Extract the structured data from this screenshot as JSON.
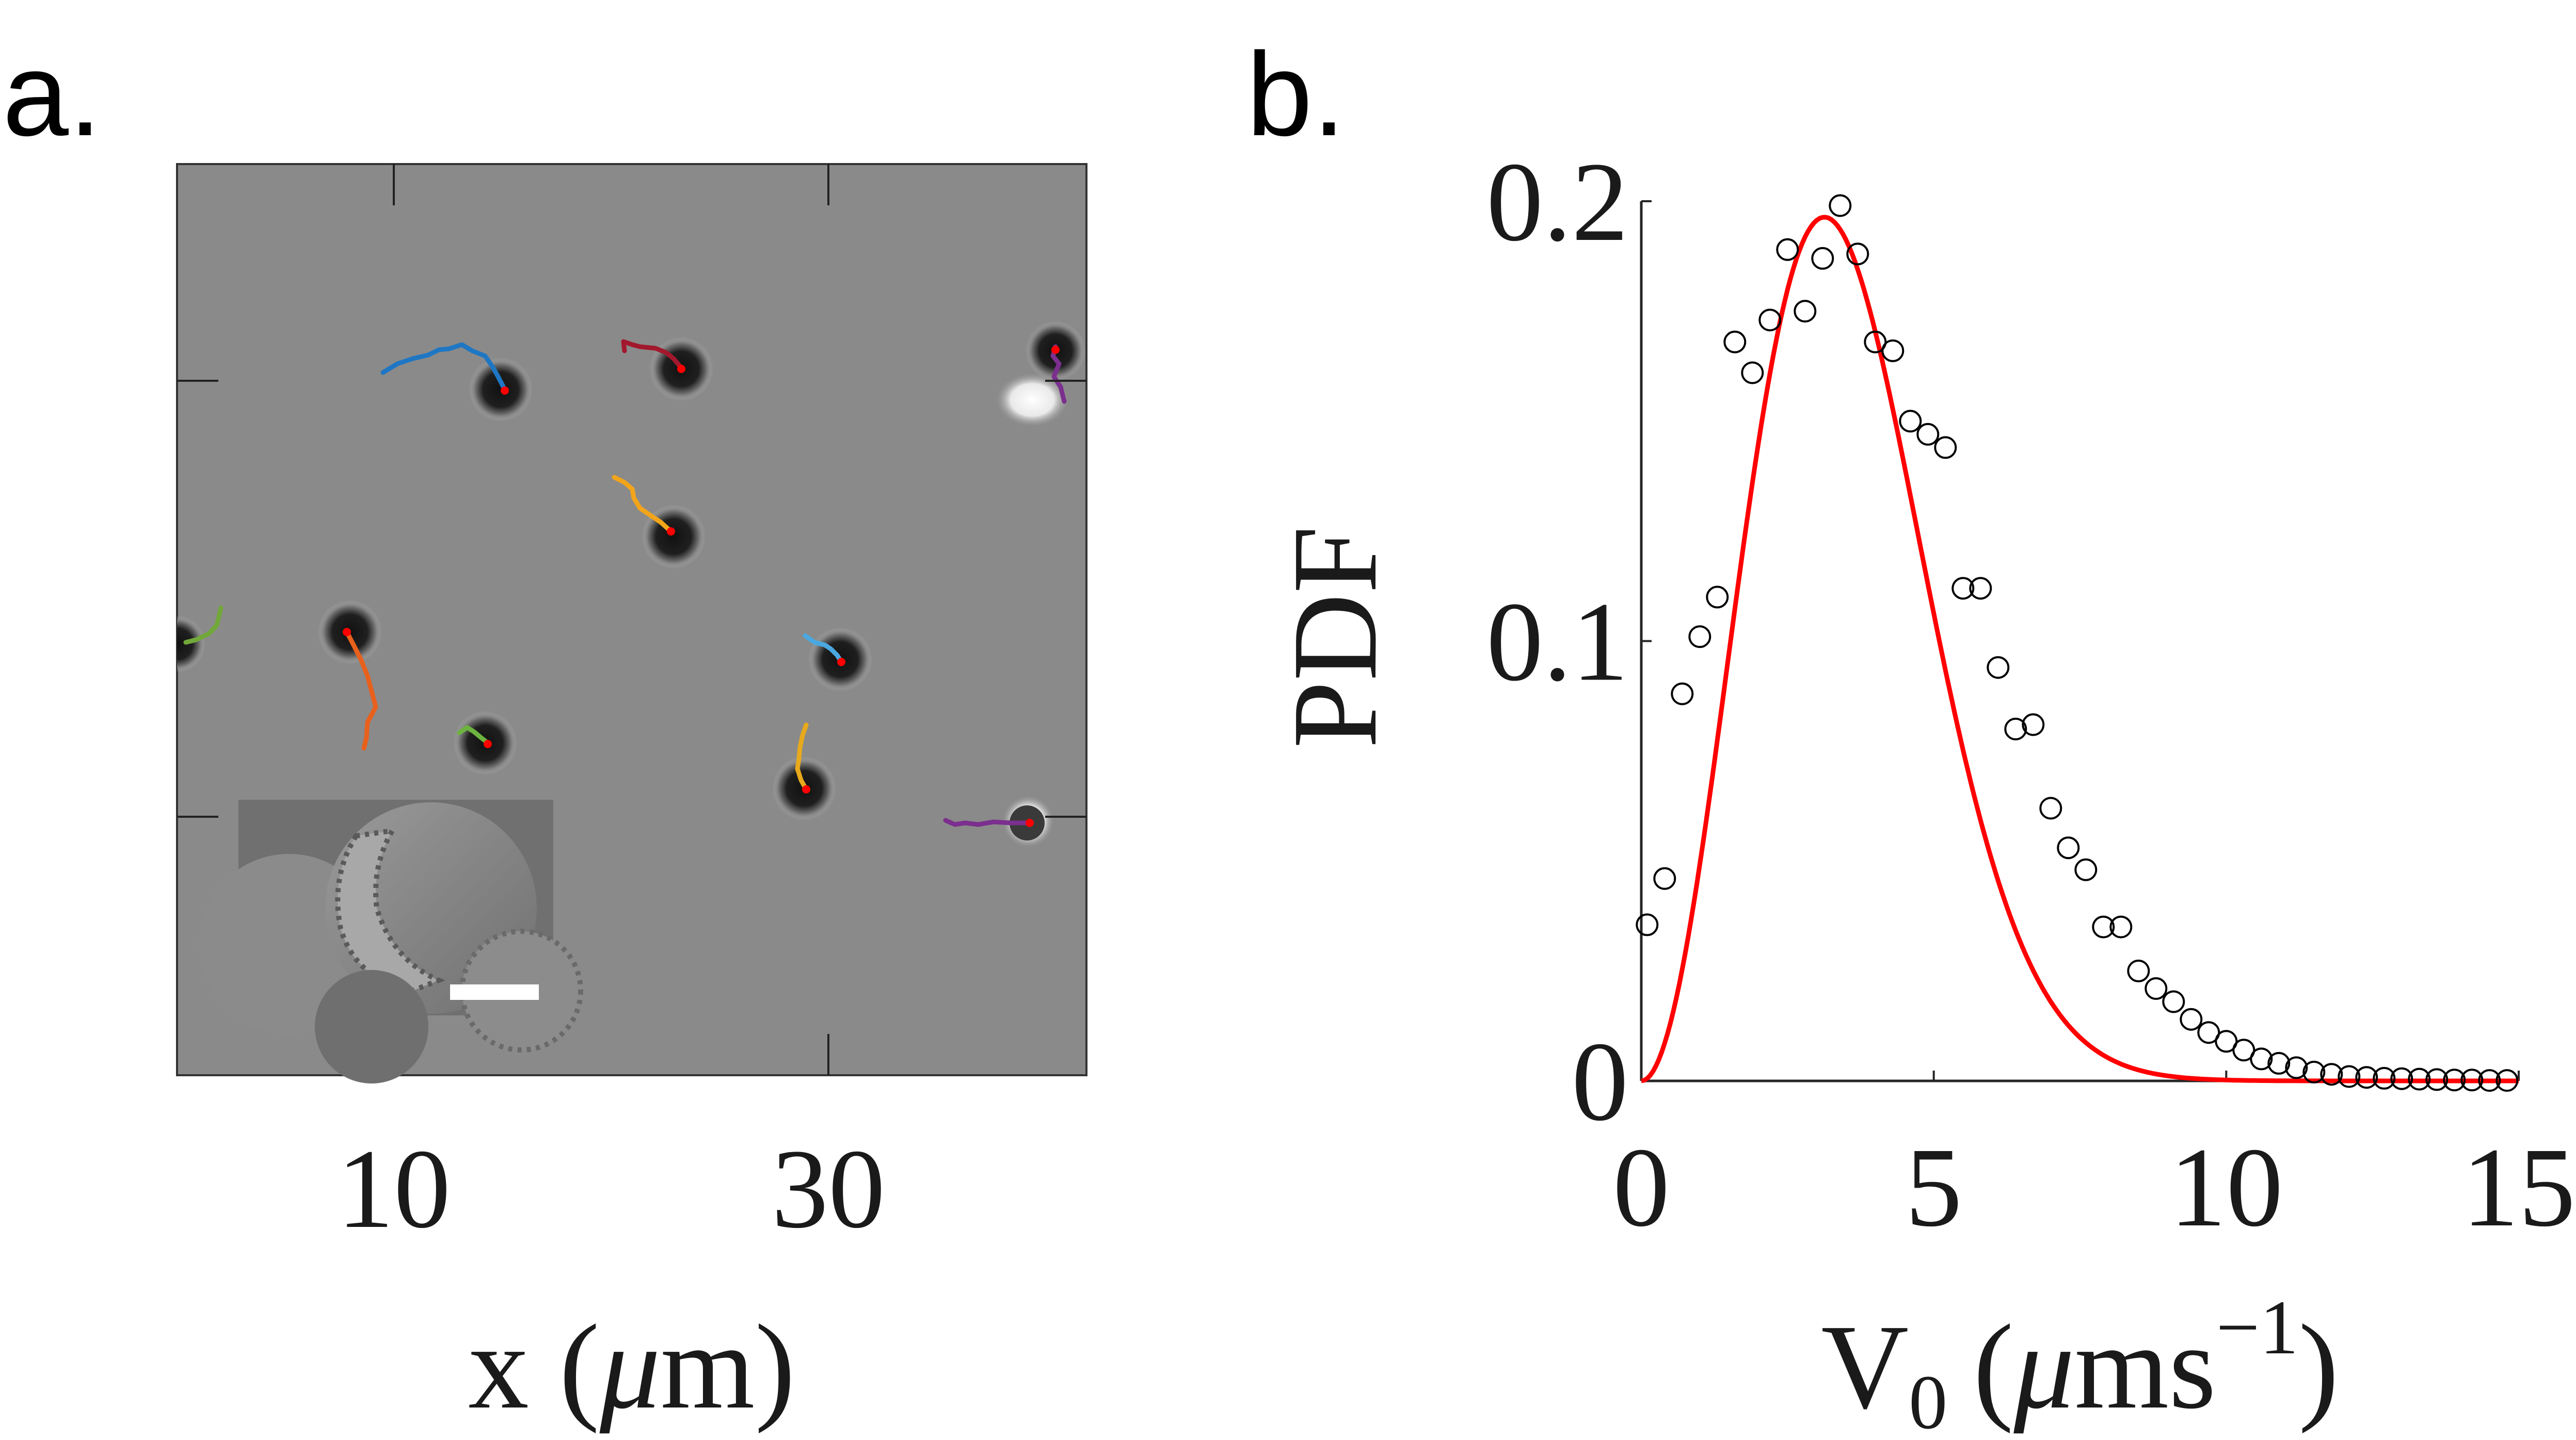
{
  "panels": {
    "a": {
      "letter": "a."
    },
    "b": {
      "letter": "b."
    }
  },
  "micrograph": {
    "xticks": [
      "10",
      "30"
    ],
    "xlabel_main": "x (",
    "xlabel_mu": "μ",
    "xlabel_end": "m)",
    "image_colors": {
      "background": "#8a8a8a",
      "particle": "#1f1f1f",
      "track_colors": [
        "#1f77c4",
        "#a2182d",
        "#7b2f8e",
        "#f2a51a",
        "#72a83a",
        "#e8601c",
        "#4aa8e0",
        "#6db33f",
        "#e8a91c",
        "#7b2f8e"
      ],
      "particle_dot": "#ff0000"
    }
  },
  "chart_data": {
    "type": "scatter",
    "ylabel": "PDF",
    "xlabel_main": "V",
    "xlabel_sub": "0",
    "xlabel_open": "(",
    "xlabel_mu": "μ",
    "xlabel_unit": "ms",
    "xlabel_sup": "−1",
    "xlabel_close": ")",
    "xlim": [
      0,
      15
    ],
    "ylim": [
      0,
      0.2
    ],
    "xticks": [
      0,
      5,
      10,
      15
    ],
    "xtick_labels": [
      "0",
      "5",
      "10",
      "15"
    ],
    "yticks": [
      0,
      0.1,
      0.2
    ],
    "ytick_labels": [
      "0",
      "0.1",
      "0.2"
    ],
    "grid": false,
    "legend": "none",
    "series": [
      {
        "style": "markers",
        "marker": "open-circle",
        "color": "#000000",
        "x": [
          0.1,
          0.4,
          0.7,
          1.0,
          1.3,
          1.6,
          1.9,
          2.2,
          2.5,
          2.8,
          3.1,
          3.4,
          3.7,
          4.0,
          4.3,
          4.6,
          4.9,
          5.2,
          5.5,
          5.8,
          6.1,
          6.4,
          6.7,
          7.0,
          7.3,
          7.6,
          7.9,
          8.2,
          8.5,
          8.8,
          9.1,
          9.4,
          9.7,
          10.0,
          10.3,
          10.6,
          10.9,
          11.2,
          11.5,
          11.8,
          12.1,
          12.4,
          12.7,
          13.0,
          13.3,
          13.6,
          13.9,
          14.2,
          14.5,
          14.8
        ],
        "y": [
          0.0355,
          0.046,
          0.088,
          0.101,
          0.11,
          0.168,
          0.161,
          0.173,
          0.189,
          0.175,
          0.187,
          0.199,
          0.188,
          0.168,
          0.166,
          0.15,
          0.147,
          0.144,
          0.112,
          0.112,
          0.094,
          0.08,
          0.081,
          0.062,
          0.053,
          0.048,
          0.035,
          0.035,
          0.025,
          0.021,
          0.018,
          0.014,
          0.011,
          0.009,
          0.007,
          0.005,
          0.004,
          0.003,
          0.002,
          0.0015,
          0.001,
          0.0008,
          0.0006,
          0.0005,
          0.0004,
          0.0003,
          0.0002,
          0.0002,
          0.0001,
          0.0001
        ]
      },
      {
        "style": "line",
        "color": "#ff0000",
        "function": "a*x^2*exp(-b*x^2)",
        "a": 0.05445,
        "b": 0.102,
        "x_range": [
          0,
          15
        ]
      }
    ]
  }
}
